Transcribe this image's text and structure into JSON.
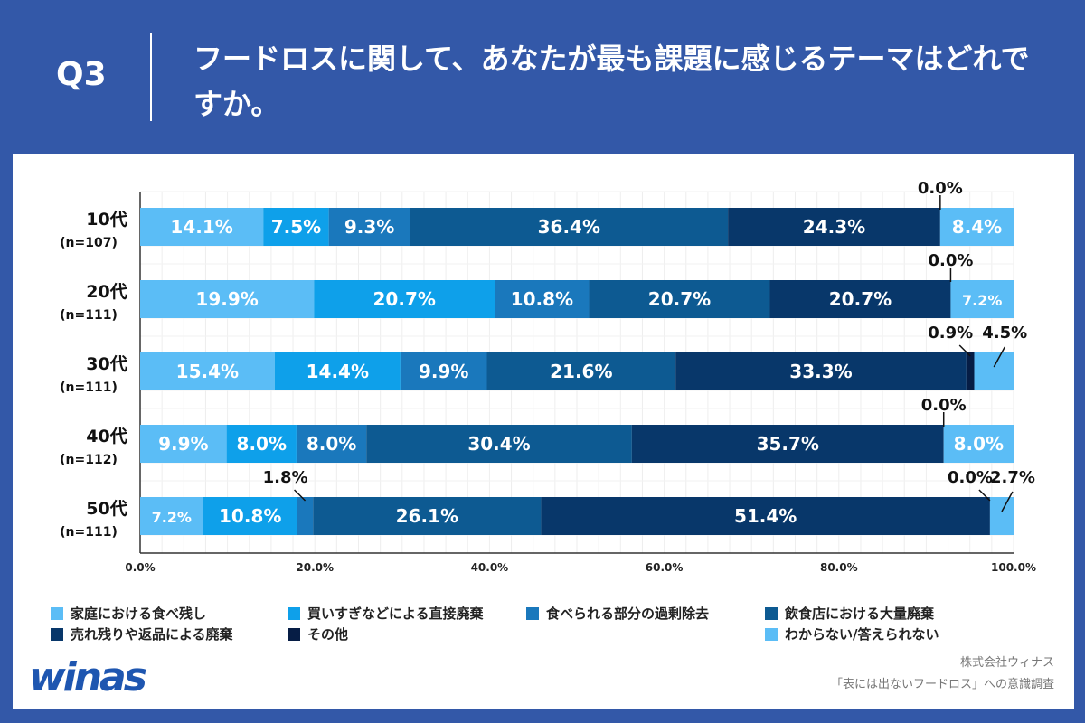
{
  "header": {
    "q": "Q3",
    "title": "フードロスに関して、あなたが最も課題に感じるテーマはどれですか。"
  },
  "chart_data": {
    "type": "bar",
    "orientation": "horizontal-stacked-100",
    "categories": [
      [
        "10代",
        "(n=107)"
      ],
      [
        "20代",
        "(n=111)"
      ],
      [
        "30代",
        "(n=111)"
      ],
      [
        "40代",
        "(n=112)"
      ],
      [
        "50代",
        "(n=111)"
      ]
    ],
    "series": [
      {
        "name": "家庭における食べ残し",
        "color": "#5bbdf6",
        "values": [
          14.1,
          19.9,
          15.4,
          9.9,
          7.2
        ]
      },
      {
        "name": "買いすぎなどによる直接廃棄",
        "color": "#0ea0ea",
        "values": [
          7.5,
          20.7,
          14.4,
          8.0,
          10.8
        ]
      },
      {
        "name": "食べられる部分の過剰除去",
        "color": "#1a78bc",
        "values": [
          9.3,
          10.8,
          9.9,
          8.0,
          1.8
        ]
      },
      {
        "name": "飲食店における大量廃棄",
        "color": "#0d5a92",
        "values": [
          36.4,
          20.7,
          21.6,
          30.4,
          26.1
        ]
      },
      {
        "name": "売れ残りや返品による廃棄",
        "color": "#08376a",
        "values": [
          24.3,
          20.7,
          33.3,
          35.7,
          51.4
        ]
      },
      {
        "name": "その他",
        "color": "#061d45",
        "values": [
          0.0,
          0.0,
          0.9,
          0.0,
          0.0
        ]
      },
      {
        "name": "わからない/答えられない",
        "color": "#5bbdf6",
        "values": [
          8.4,
          7.2,
          4.5,
          8.0,
          2.7
        ]
      }
    ],
    "xlim": [
      0,
      100
    ],
    "xticks": [
      "0.0%",
      "20.0%",
      "40.0%",
      "60.0%",
      "80.0%",
      "100.0%"
    ],
    "grid": true,
    "legend": "bottom"
  },
  "footer": {
    "logo": "winas",
    "company": "株式会社ウィナス",
    "survey": "「表には出ないフードロス」への意識調査"
  }
}
